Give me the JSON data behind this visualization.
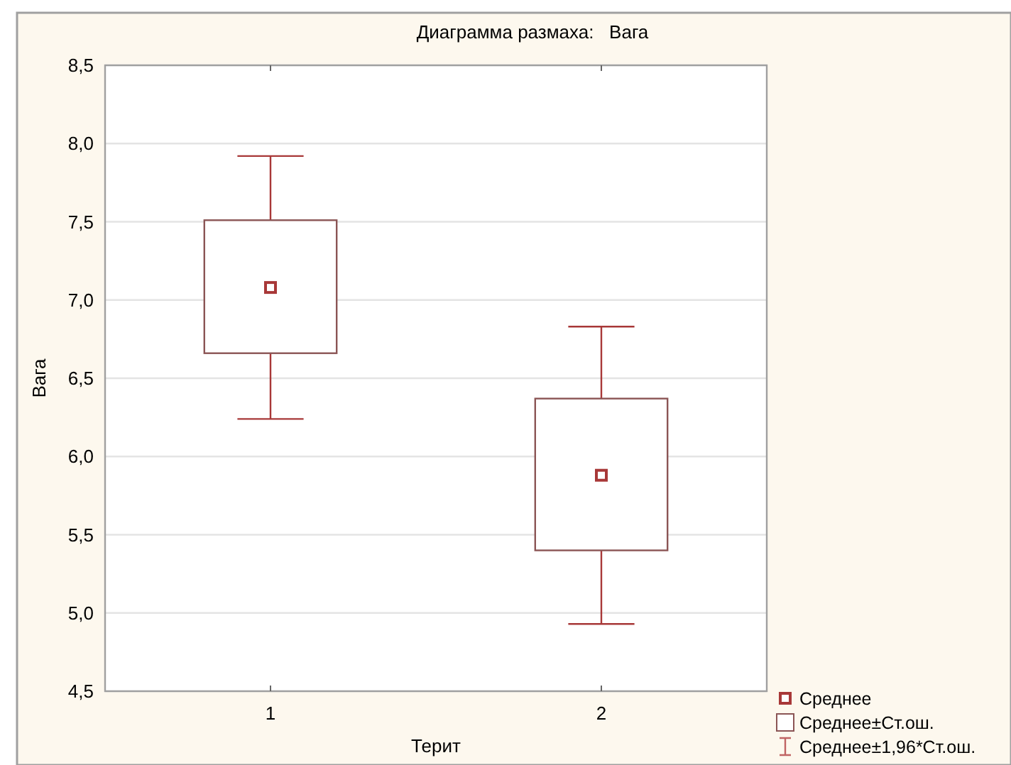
{
  "chart_data": {
    "type": "bar",
    "title": "Диаграмма размаха:   Вага",
    "xlabel": "Терит",
    "ylabel": "Вага",
    "categories": [
      "1",
      "2"
    ],
    "ylim": [
      4.5,
      8.5
    ],
    "yticks": [
      {
        "value": 4.5,
        "label": "4,5"
      },
      {
        "value": 5,
        "label": "5,0"
      },
      {
        "value": 5.5,
        "label": "5,5"
      },
      {
        "value": 6,
        "label": "6,0"
      },
      {
        "value": 6.5,
        "label": "6,5"
      },
      {
        "value": 7,
        "label": "7,0"
      },
      {
        "value": 7.5,
        "label": "7,5"
      },
      {
        "value": 8,
        "label": "8,0"
      },
      {
        "value": 8.5,
        "label": "8,5"
      }
    ],
    "grid": "y",
    "legend": "bottom right",
    "series": [
      {
        "name": "Среднее",
        "type": "scatter",
        "marker": "square",
        "color": "#a83838",
        "values": [
          7.08,
          5.88
        ],
        "errors": [
          0.84,
          0.95
        ]
      },
      {
        "name": "Среднее±Ст.ош.",
        "color": "#8b5555",
        "base": [
          6.66,
          5.4
        ],
        "values": [
          0.85,
          0.97
        ]
      },
      {
        "name": "Среднее±1,96*Ст.ош.",
        "type": "scatter",
        "marker": "none",
        "color": "#c06464",
        "values": [
          null,
          null
        ]
      }
    ]
  }
}
